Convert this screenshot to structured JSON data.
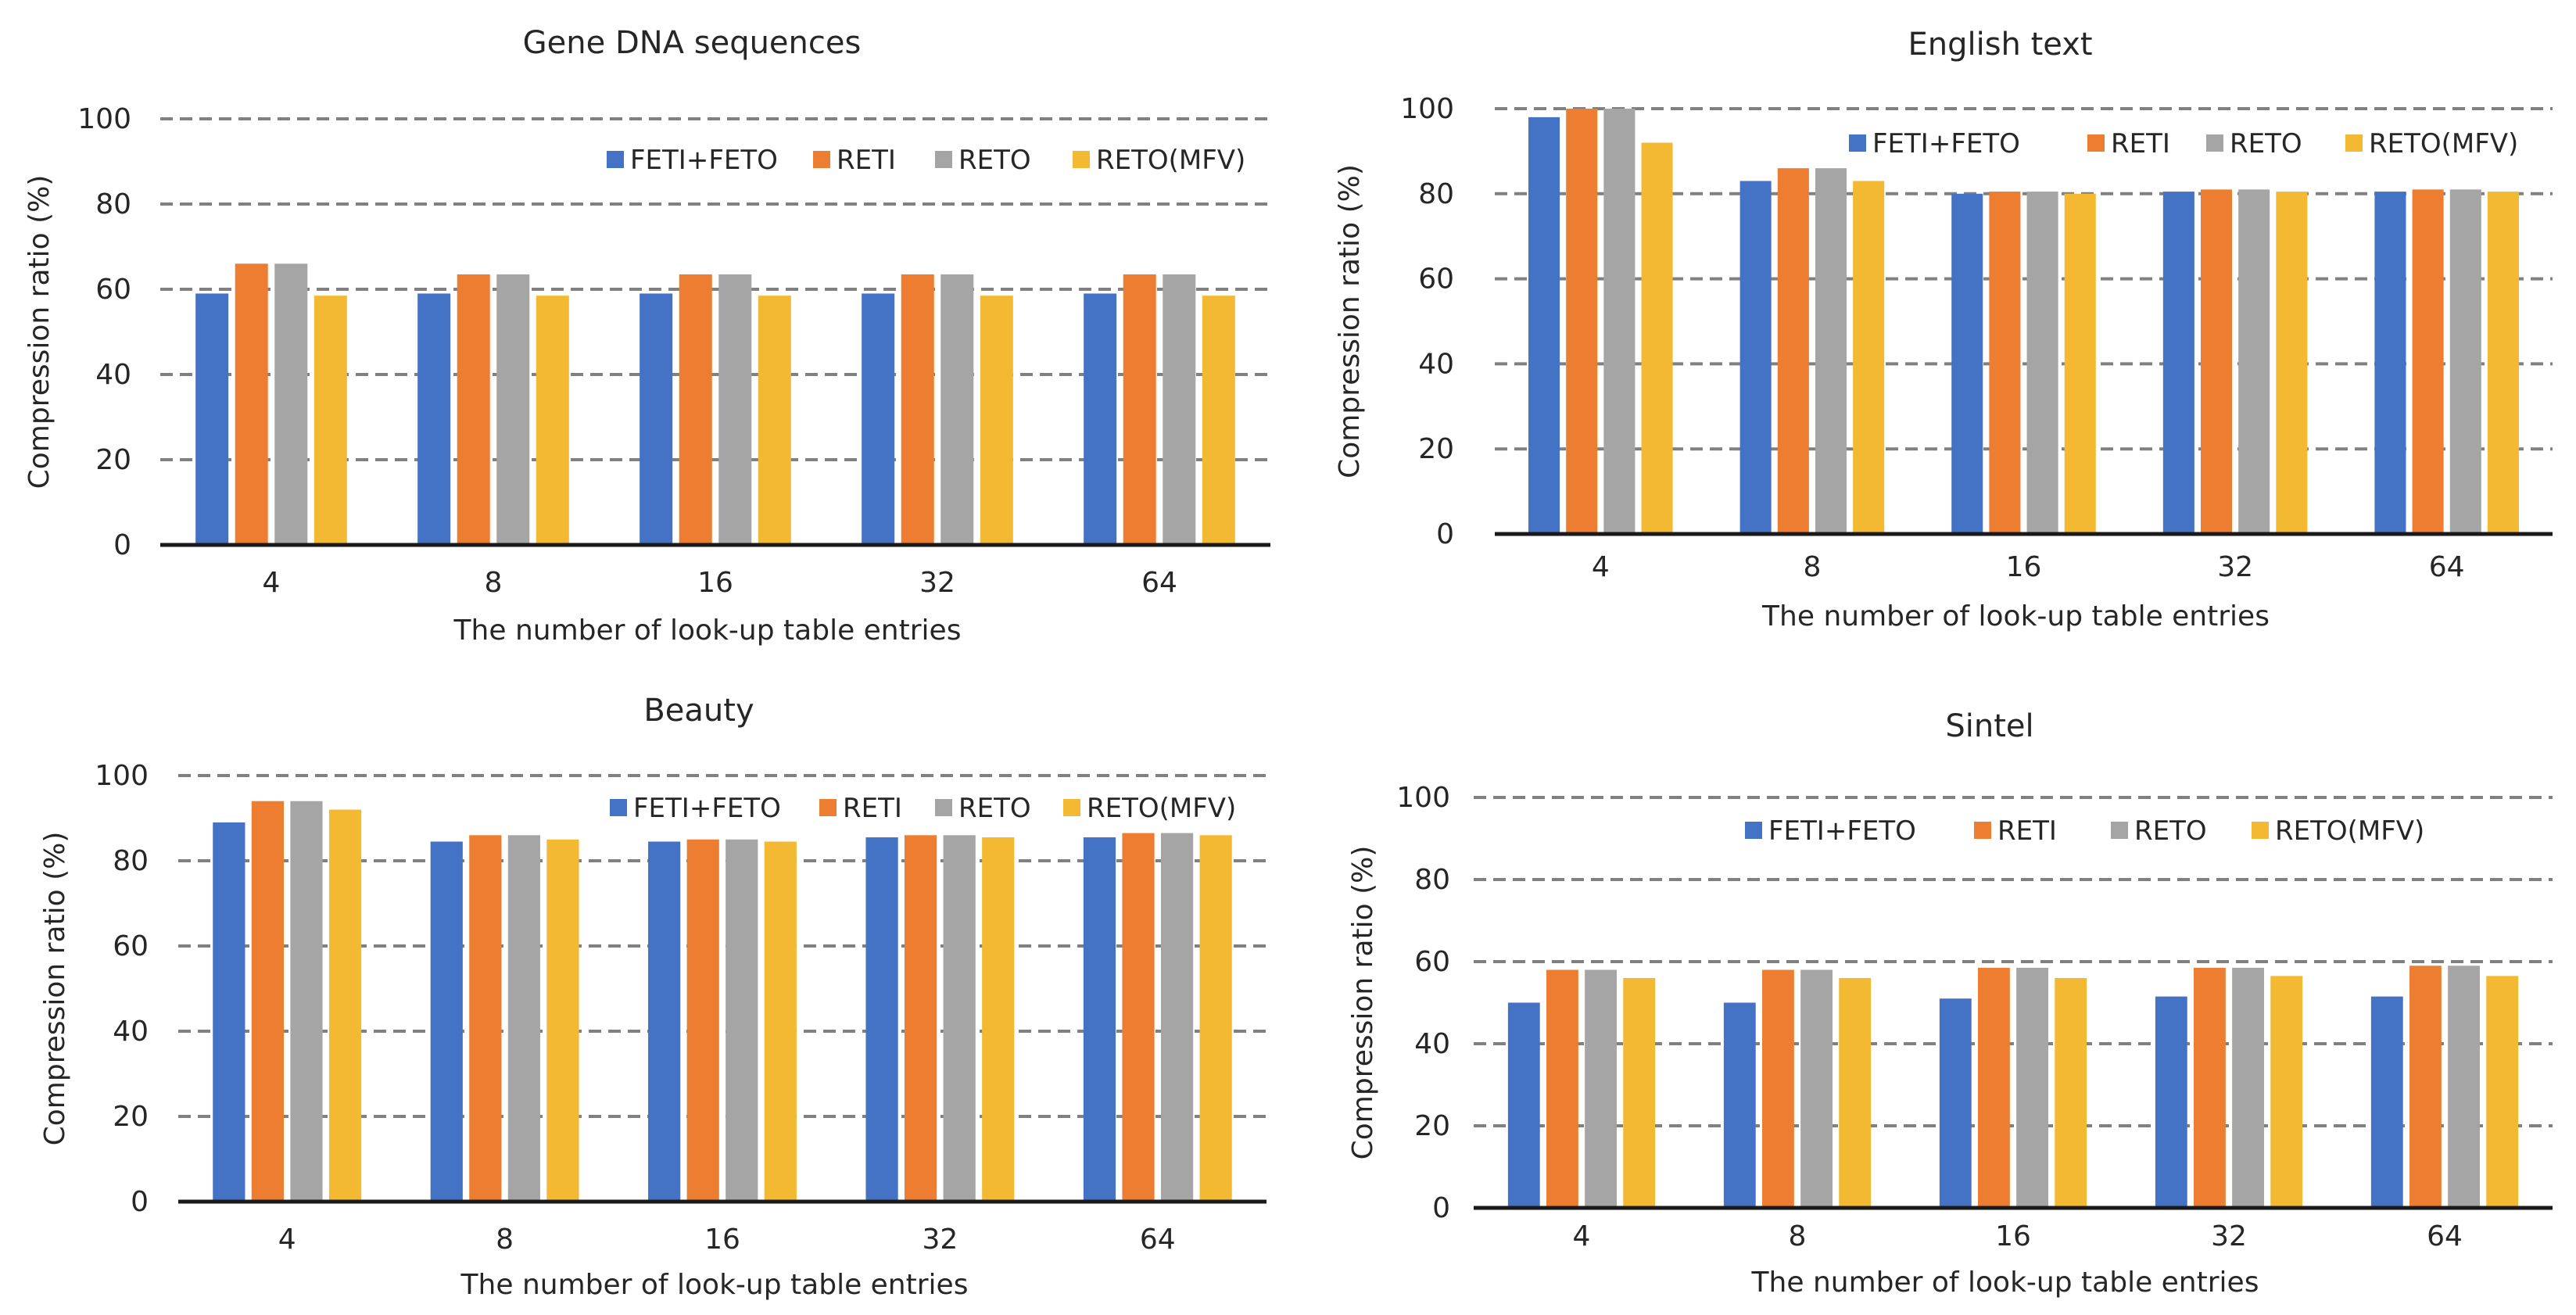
{
  "colors": {
    "FETI+FETO": "#4472C4",
    "RETI": "#ED7D31",
    "RETO": "#A5A5A5",
    "RETO(MFV)": "#F4B932",
    "grid": "#808080",
    "text": "#262626"
  },
  "chart_data": [
    {
      "type": "bar",
      "title": "Gene DNA sequences",
      "xlabel": "The number of look-up table entries",
      "ylabel": "Compression ratio (%)",
      "ylim": [
        0,
        100
      ],
      "yticks": [
        "0",
        "20",
        "40",
        "60",
        "80",
        "100"
      ],
      "categories": [
        "4",
        "8",
        "16",
        "32",
        "64"
      ],
      "legend": [
        "FETI+FETO",
        "RETI",
        "RETO",
        "RETO(MFV)"
      ],
      "legend_position": "top-right",
      "series": [
        {
          "name": "FETI+FETO",
          "values": [
            59,
            59,
            59,
            59,
            59
          ]
        },
        {
          "name": "RETI",
          "values": [
            66,
            63.5,
            63.5,
            63.5,
            63.5
          ]
        },
        {
          "name": "RETO",
          "values": [
            66,
            63.5,
            63.5,
            63.5,
            63.5
          ]
        },
        {
          "name": "RETO(MFV)",
          "values": [
            58.5,
            58.5,
            58.5,
            58.5,
            58.5
          ]
        }
      ]
    },
    {
      "type": "bar",
      "title": "English text",
      "xlabel": "The number of look-up table entries",
      "ylabel": "Compression ratio (%)",
      "ylim": [
        0,
        100
      ],
      "yticks": [
        "0",
        "20",
        "40",
        "60",
        "80",
        "100"
      ],
      "categories": [
        "4",
        "8",
        "16",
        "32",
        "64"
      ],
      "legend": [
        "FETI+FETO",
        "RETI",
        "RETO",
        "RETO(MFV)"
      ],
      "legend_position": "top-right",
      "series": [
        {
          "name": "FETI+FETO",
          "values": [
            98,
            83,
            80,
            80.5,
            80.5
          ]
        },
        {
          "name": "RETI",
          "values": [
            100,
            86,
            80.5,
            81,
            81
          ]
        },
        {
          "name": "RETO",
          "values": [
            100,
            86,
            80.5,
            81,
            81
          ]
        },
        {
          "name": "RETO(MFV)",
          "values": [
            92,
            83,
            80,
            80.5,
            80.5
          ]
        }
      ]
    },
    {
      "type": "bar",
      "title": "Beauty",
      "xlabel": "The number of look-up table entries",
      "ylabel": "Compression ratio (%)",
      "ylim": [
        0,
        100
      ],
      "yticks": [
        "0",
        "20",
        "40",
        "60",
        "80",
        "100"
      ],
      "categories": [
        "4",
        "8",
        "16",
        "32",
        "64"
      ],
      "legend": [
        "FETI+FETO",
        "RETI",
        "RETO",
        "RETO(MFV)"
      ],
      "legend_position": "top-right",
      "series": [
        {
          "name": "FETI+FETO",
          "values": [
            89,
            84.5,
            84.5,
            85.5,
            85.5
          ]
        },
        {
          "name": "RETI",
          "values": [
            94,
            86,
            85,
            86,
            86.5
          ]
        },
        {
          "name": "RETO",
          "values": [
            94,
            86,
            85,
            86,
            86.5
          ]
        },
        {
          "name": "RETO(MFV)",
          "values": [
            92,
            85,
            84.5,
            85.5,
            86
          ]
        }
      ]
    },
    {
      "type": "bar",
      "title": "Sintel",
      "xlabel": "The number of look-up table entries",
      "ylabel": "Compression ratio (%)",
      "ylim": [
        0,
        100
      ],
      "yticks": [
        "0",
        "20",
        "40",
        "60",
        "80",
        "100"
      ],
      "categories": [
        "4",
        "8",
        "16",
        "32",
        "64"
      ],
      "legend": [
        "FETI+FETO",
        "RETI",
        "RETO",
        "RETO(MFV)"
      ],
      "legend_position": "top-right",
      "series": [
        {
          "name": "FETI+FETO",
          "values": [
            50,
            50,
            51,
            51.5,
            51.5
          ]
        },
        {
          "name": "RETI",
          "values": [
            58,
            58,
            58.5,
            58.5,
            59
          ]
        },
        {
          "name": "RETO",
          "values": [
            58,
            58,
            58.5,
            58.5,
            59
          ]
        },
        {
          "name": "RETO(MFV)",
          "values": [
            56,
            56,
            56,
            56.5,
            56.5
          ]
        }
      ]
    }
  ]
}
